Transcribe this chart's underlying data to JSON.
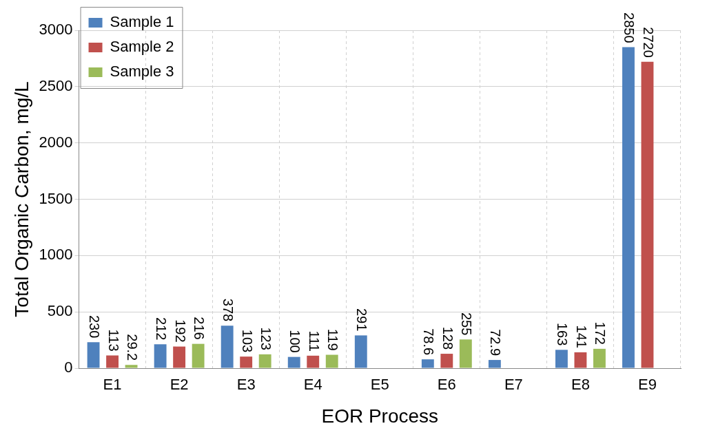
{
  "chart_data": {
    "type": "bar",
    "xlabel": "EOR Process",
    "ylabel": "Total Organic Carbon, mg/L",
    "categories": [
      "E1",
      "E2",
      "E3",
      "E4",
      "E5",
      "E6",
      "E7",
      "E8",
      "E9"
    ],
    "series": [
      {
        "name": "Sample 1",
        "color": "#4f81bd",
        "values": [
          230,
          212,
          378,
          100,
          291,
          78.6,
          72.9,
          163,
          2850
        ]
      },
      {
        "name": "Sample 2",
        "color": "#c0504d",
        "values": [
          113,
          192,
          103,
          111,
          null,
          128,
          null,
          141,
          2720
        ]
      },
      {
        "name": "Sample 3",
        "color": "#9bbb59",
        "values": [
          29.2,
          216,
          123,
          119,
          null,
          255,
          null,
          172,
          null
        ]
      }
    ],
    "ylim": [
      0,
      3000
    ],
    "yticks": [
      0,
      500,
      1000,
      1500,
      2000,
      2500,
      3000
    ],
    "grid": true,
    "legend": "top left",
    "data_labels": true
  }
}
